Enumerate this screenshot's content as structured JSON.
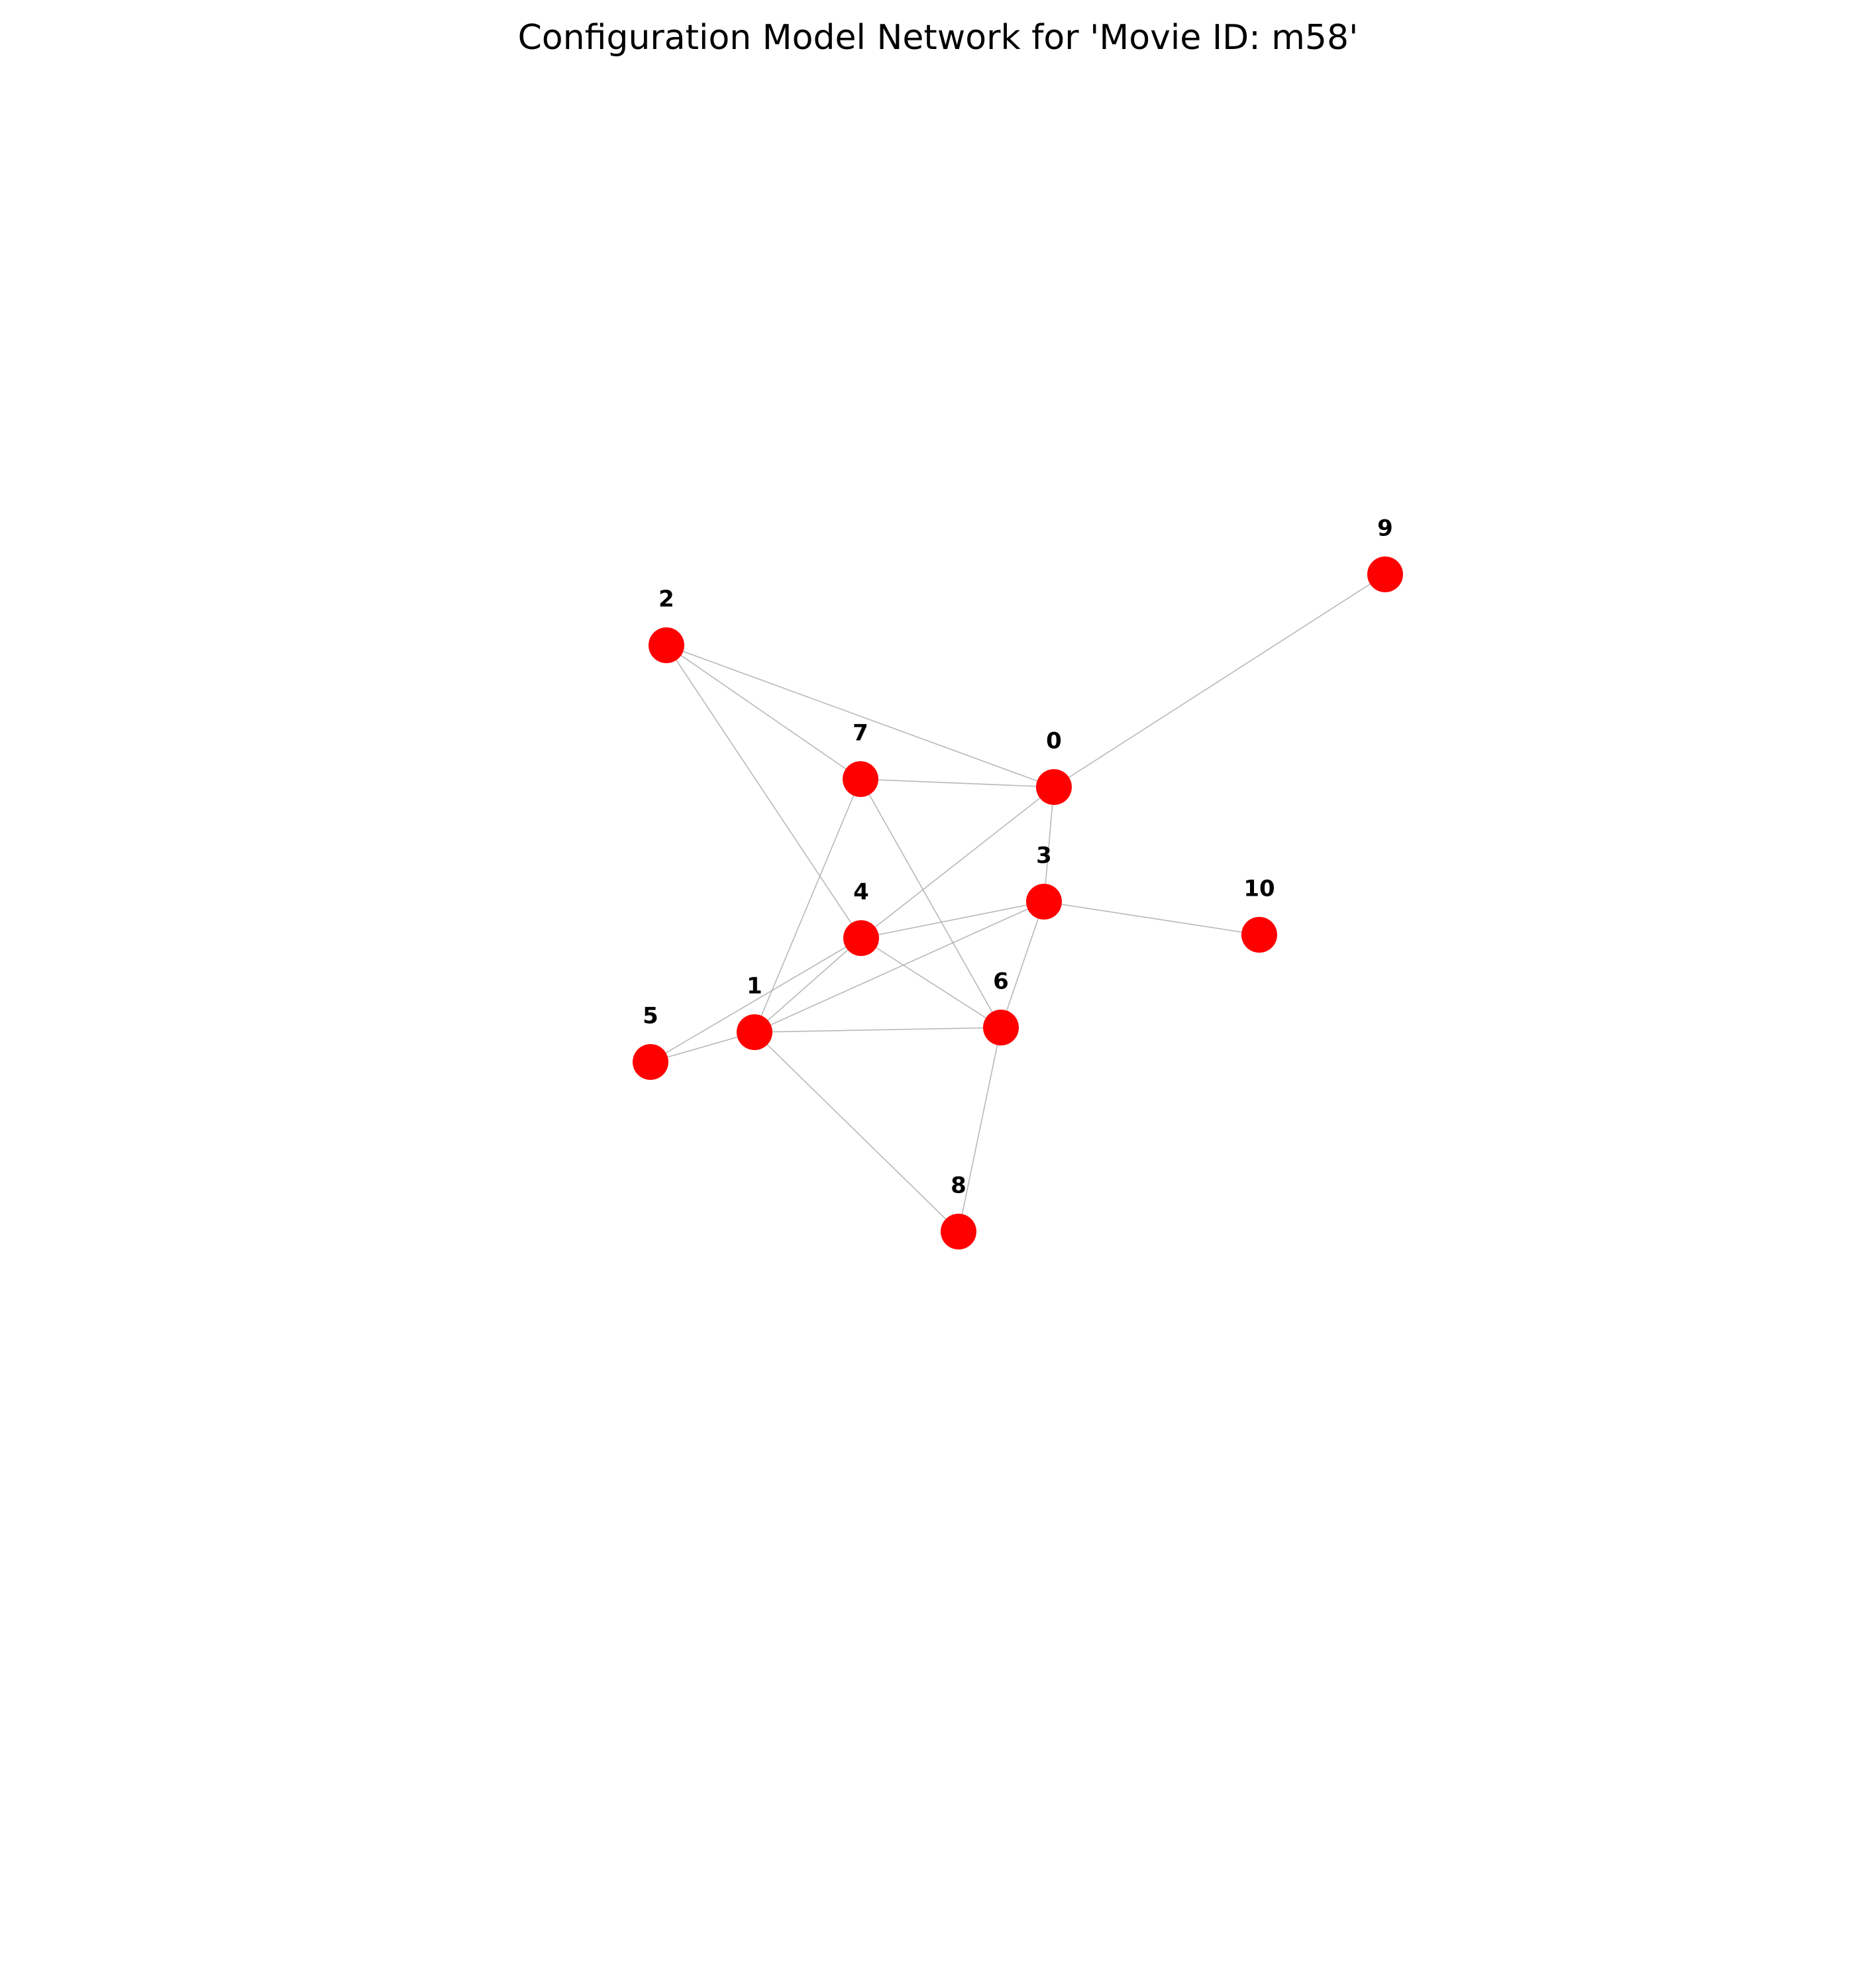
{
  "title": "Configuration Model Network for 'Movie ID: m58'",
  "style": {
    "node_color": "#ff0000",
    "edge_color": "#b0b0b0",
    "label_color": "#000000",
    "background": "#ffffff"
  },
  "nodes": [
    {
      "id": "0",
      "label": "0"
    },
    {
      "id": "1",
      "label": "1"
    },
    {
      "id": "2",
      "label": "2"
    },
    {
      "id": "3",
      "label": "3"
    },
    {
      "id": "4",
      "label": "4"
    },
    {
      "id": "5",
      "label": "5"
    },
    {
      "id": "6",
      "label": "6"
    },
    {
      "id": "7",
      "label": "7"
    },
    {
      "id": "8",
      "label": "8"
    },
    {
      "id": "9",
      "label": "9"
    },
    {
      "id": "10",
      "label": "10"
    }
  ],
  "edges": [
    {
      "source": "2",
      "target": "7"
    },
    {
      "source": "2",
      "target": "0"
    },
    {
      "source": "2",
      "target": "4"
    },
    {
      "source": "7",
      "target": "0"
    },
    {
      "source": "7",
      "target": "1"
    },
    {
      "source": "7",
      "target": "6"
    },
    {
      "source": "0",
      "target": "9"
    },
    {
      "source": "0",
      "target": "4"
    },
    {
      "source": "0",
      "target": "3"
    },
    {
      "source": "3",
      "target": "10"
    },
    {
      "source": "3",
      "target": "4"
    },
    {
      "source": "3",
      "target": "1"
    },
    {
      "source": "3",
      "target": "6"
    },
    {
      "source": "4",
      "target": "5"
    },
    {
      "source": "4",
      "target": "1"
    },
    {
      "source": "4",
      "target": "6"
    },
    {
      "source": "5",
      "target": "1"
    },
    {
      "source": "1",
      "target": "6"
    },
    {
      "source": "1",
      "target": "8"
    },
    {
      "source": "6",
      "target": "8"
    }
  ]
}
